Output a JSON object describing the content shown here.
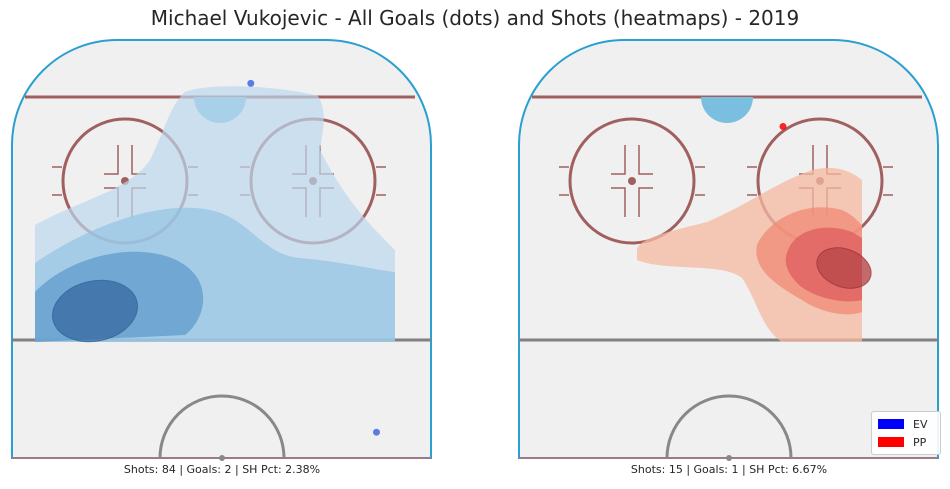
{
  "title": "Michael Vukojevic - All Goals (dots) and Shots (heatmaps) - 2019",
  "panels": [
    {
      "caption": "Shots: 84 | Goals: 2 | SH Pct: 2.38%",
      "colormap": "Blues",
      "goal_color": "#4169e1"
    },
    {
      "caption": "Shots: 15 | Goals: 1 | SH Pct: 6.67%",
      "colormap": "Reds",
      "goal_color": "#ff0000"
    }
  ],
  "legend": {
    "placement": "bottom-right",
    "items": [
      {
        "label": "EV",
        "color": "#0000ff"
      },
      {
        "label": "PP",
        "color": "#ff0000"
      }
    ]
  },
  "chart_data": [
    {
      "type": "heatmap",
      "title": "Michael Vukojevic - All Goals (dots) and Shots (heatmaps) - 2019",
      "panel": "EV",
      "shots": 84,
      "goals": 2,
      "sh_pct": "2.38%",
      "goal_points": [
        {
          "x": 0.57,
          "y": 0.87
        },
        {
          "x": 0.87,
          "y": 0.06
        }
      ],
      "heat_peak": {
        "x": 0.19,
        "y": 0.22
      }
    },
    {
      "type": "heatmap",
      "panel": "PP",
      "shots": 15,
      "goals": 1,
      "sh_pct": "6.67%",
      "goal_points": [
        {
          "x": 0.63,
          "y": 0.77
        }
      ],
      "heat_peak": {
        "x": 0.78,
        "y": 0.37
      }
    }
  ]
}
